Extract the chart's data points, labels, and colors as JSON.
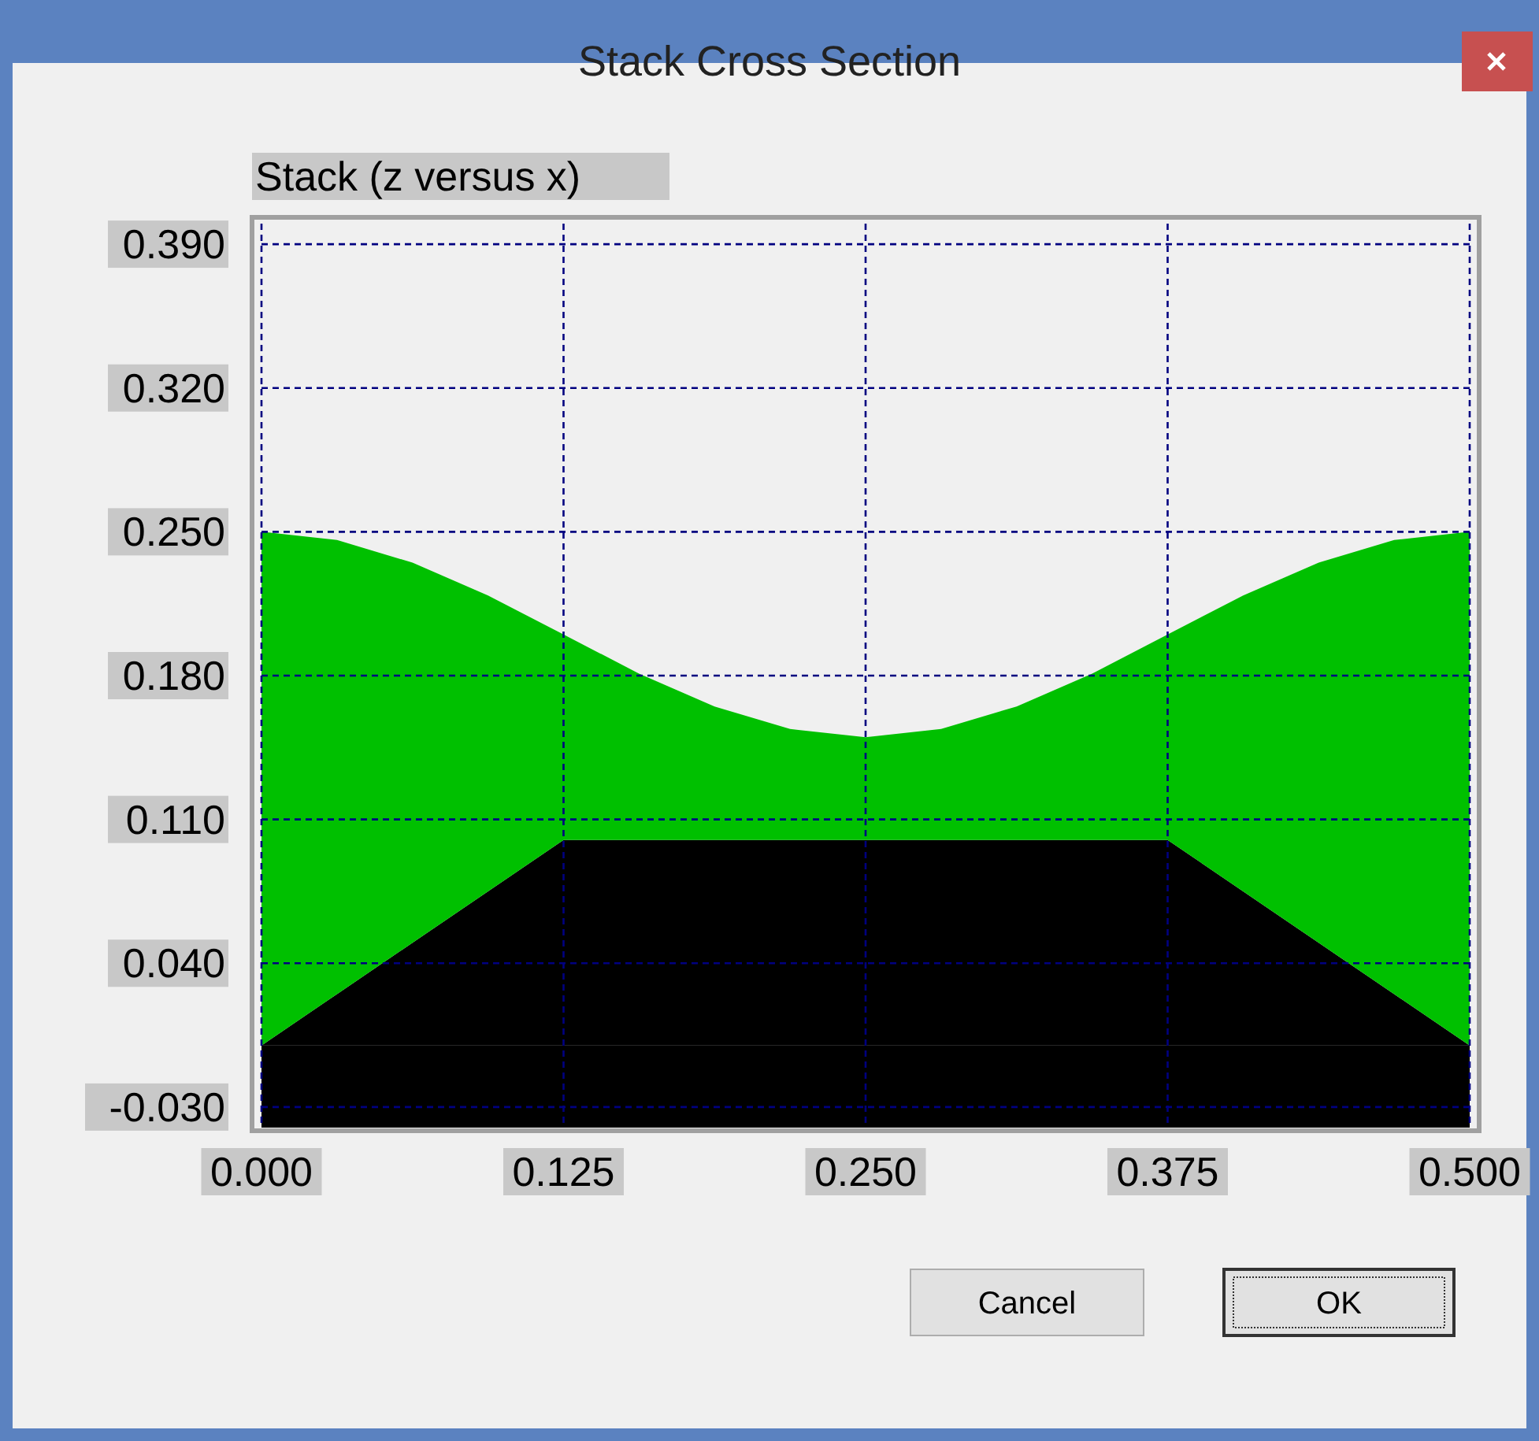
{
  "chart_data": {
    "type": "area",
    "title": "Stack (z versus x)",
    "stacked": true,
    "annotations": [
      "Stack Cross Section",
      "Cancel",
      "OK"
    ],
    "x": [
      0,
      0.03125,
      0.0625,
      0.09375,
      0.125,
      0.15625,
      0.1875,
      0.21875,
      0.25,
      0.28125,
      0.3125,
      0.34375,
      0.375,
      0.40625,
      0.4375,
      0.46875,
      0.5
    ],
    "series": [
      {
        "color": "#000000",
        "values": [
          0,
          0.025,
          0.05,
          0.075,
          0.1,
          0.1,
          0.1,
          0.1,
          0.1,
          0.1,
          0.1,
          0.1,
          0.1,
          0.075,
          0.05,
          0.025,
          0
        ]
      },
      {
        "color": "#00c000",
        "values": [
          0.25,
          0.221,
          0.185,
          0.144,
          0.1,
          0.081,
          0.065,
          0.054,
          0.05,
          0.054,
          0.065,
          0.081,
          0.1,
          0.144,
          0.185,
          0.221,
          0.25
        ]
      }
    ],
    "xlim": [
      0,
      0.5
    ],
    "ylim": [
      -0.04,
      0.4
    ],
    "xticks": [
      {
        "value": 0,
        "label": "0.000"
      },
      {
        "value": 0.125,
        "label": "0.125"
      },
      {
        "value": 0.25,
        "label": "0.250"
      },
      {
        "value": 0.375,
        "label": "0.375"
      },
      {
        "value": 0.5,
        "label": "0.500"
      }
    ],
    "yticks": [
      {
        "value": -0.03,
        "label": "-0.030"
      },
      {
        "value": 0.04,
        "label": "0.040"
      },
      {
        "value": 0.11,
        "label": "0.110"
      },
      {
        "value": 0.18,
        "label": "0.180"
      },
      {
        "value": 0.25,
        "label": "0.250"
      },
      {
        "value": 0.32,
        "label": "0.320"
      },
      {
        "value": 0.39,
        "label": "0.390"
      }
    ],
    "bands": [
      {
        "axis": "y",
        "from": -0.04,
        "to": 0,
        "color": "#000000"
      }
    ],
    "grid": true
  }
}
